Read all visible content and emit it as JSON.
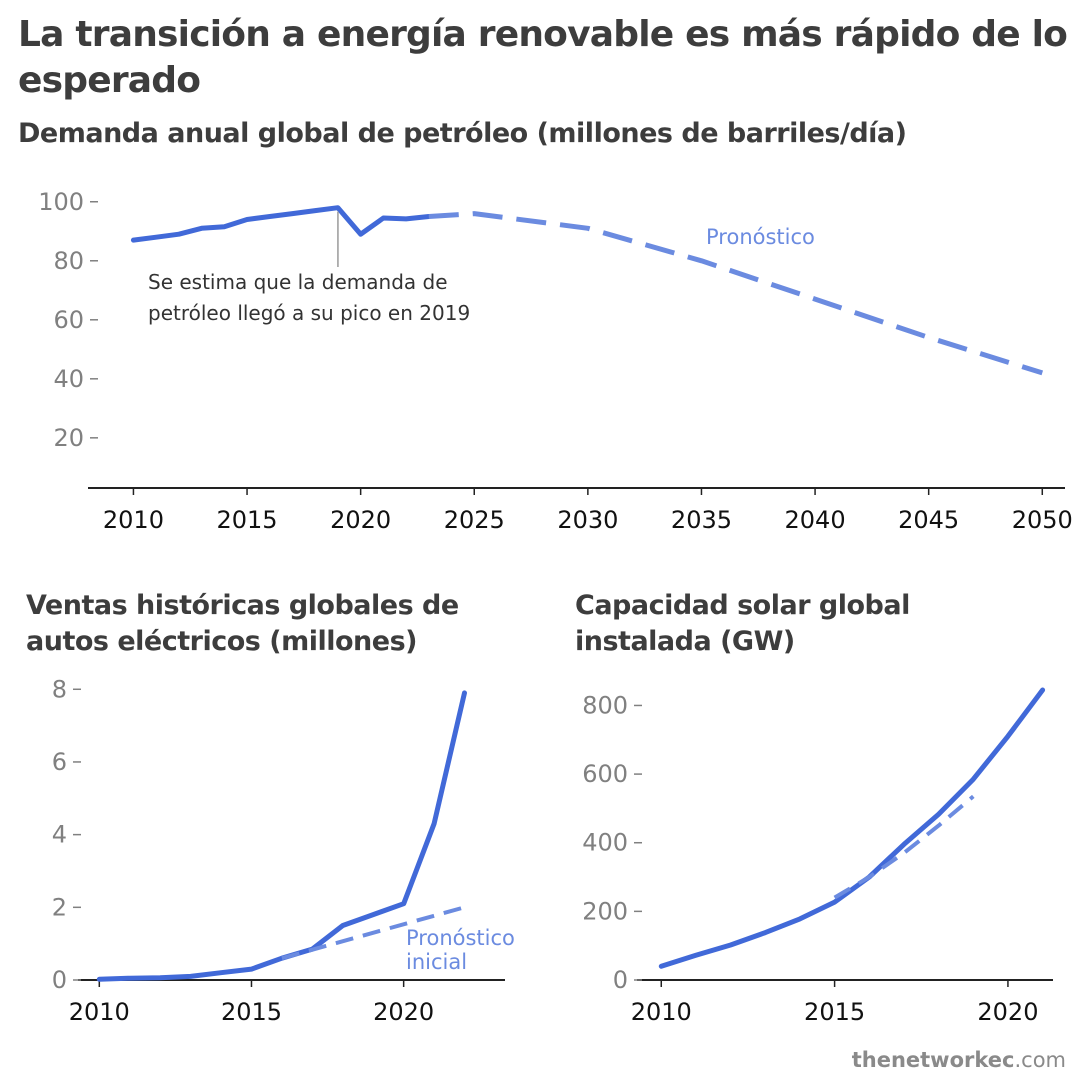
{
  "title": "La transición a energía renovable es más rápido de lo esperado",
  "source": {
    "name": "thenetworkec",
    "domain": ".com"
  },
  "colors": {
    "line": "#4169d8",
    "forecast": "#6b8be0",
    "axis": "#222222",
    "tick_label": "#808080",
    "title": "#3d3d3d"
  },
  "chart_data": [
    {
      "type": "line",
      "title": "Demanda anual global de petróleo (millones de barriles/día)",
      "xlim": [
        2008,
        2051
      ],
      "ylim": [
        3,
        105
      ],
      "xticks": [
        2010,
        2015,
        2020,
        2025,
        2030,
        2035,
        2040,
        2045,
        2050
      ],
      "yticks": [
        20,
        40,
        60,
        80,
        100
      ],
      "series": [
        {
          "name": "",
          "style": "solid",
          "x": [
            2010,
            2011,
            2012,
            2013,
            2014,
            2015,
            2016,
            2017,
            2018,
            2019,
            2020,
            2021,
            2022,
            2023
          ],
          "y": [
            87,
            88,
            89,
            91,
            91.5,
            94,
            95,
            96,
            97,
            98,
            89,
            94.5,
            94.2,
            95
          ]
        },
        {
          "name": "Pronóstico",
          "style": "dashed",
          "x": [
            2023,
            2025,
            2030,
            2035,
            2040,
            2045,
            2050
          ],
          "y": [
            95,
            96,
            91,
            80,
            67,
            54,
            42
          ]
        }
      ],
      "annotations": [
        {
          "x": 2019,
          "lines": [
            "Se estima que la demanda de",
            "petróleo llegó a su pico en 2019"
          ]
        },
        {
          "text": "Pronóstico",
          "x": 2036,
          "y": 86
        }
      ]
    },
    {
      "type": "line",
      "title": "Ventas históricas  globales de autos eléctricos (millones)",
      "xlim": [
        2009.3,
        2023.1
      ],
      "ylim": [
        0,
        8.2
      ],
      "xticks": [
        2010,
        2015,
        2020
      ],
      "yticks": [
        0,
        2,
        4,
        6,
        8
      ],
      "series": [
        {
          "name": "",
          "style": "solid",
          "x": [
            2010,
            2011,
            2012,
            2013,
            2014,
            2015,
            2016,
            2017,
            2018,
            2019,
            2020,
            2021,
            2022
          ],
          "y": [
            0.02,
            0.05,
            0.06,
            0.1,
            0.2,
            0.3,
            0.6,
            0.85,
            1.5,
            1.8,
            2.1,
            4.3,
            7.9
          ]
        },
        {
          "name": "Pronóstico inicial",
          "style": "dashed",
          "x": [
            2016,
            2022
          ],
          "y": [
            0.6,
            2.0
          ]
        }
      ],
      "annotations": [
        {
          "lines": [
            "Pronóstico",
            "inicial"
          ],
          "x": 2019.5,
          "y": 1.15
        }
      ]
    },
    {
      "type": "line",
      "title": "Capacidad solar global instalada (GW)",
      "xlim": [
        2009.3,
        2021.3
      ],
      "ylim": [
        0,
        880
      ],
      "xticks": [
        2010,
        2015,
        2020
      ],
      "yticks": [
        0,
        200,
        400,
        600,
        800
      ],
      "series": [
        {
          "name": "",
          "style": "solid",
          "x": [
            2010,
            2011,
            2012,
            2013,
            2014,
            2015,
            2016,
            2017,
            2018,
            2019,
            2020,
            2021
          ],
          "y": [
            40,
            72,
            102,
            138,
            178,
            227,
            300,
            395,
            483,
            585,
            710,
            845
          ]
        },
        {
          "name": "",
          "style": "dashed",
          "x": [
            2015,
            2016,
            2017,
            2018,
            2019
          ],
          "y": [
            240,
            300,
            370,
            450,
            535
          ]
        }
      ],
      "annotations": []
    }
  ]
}
